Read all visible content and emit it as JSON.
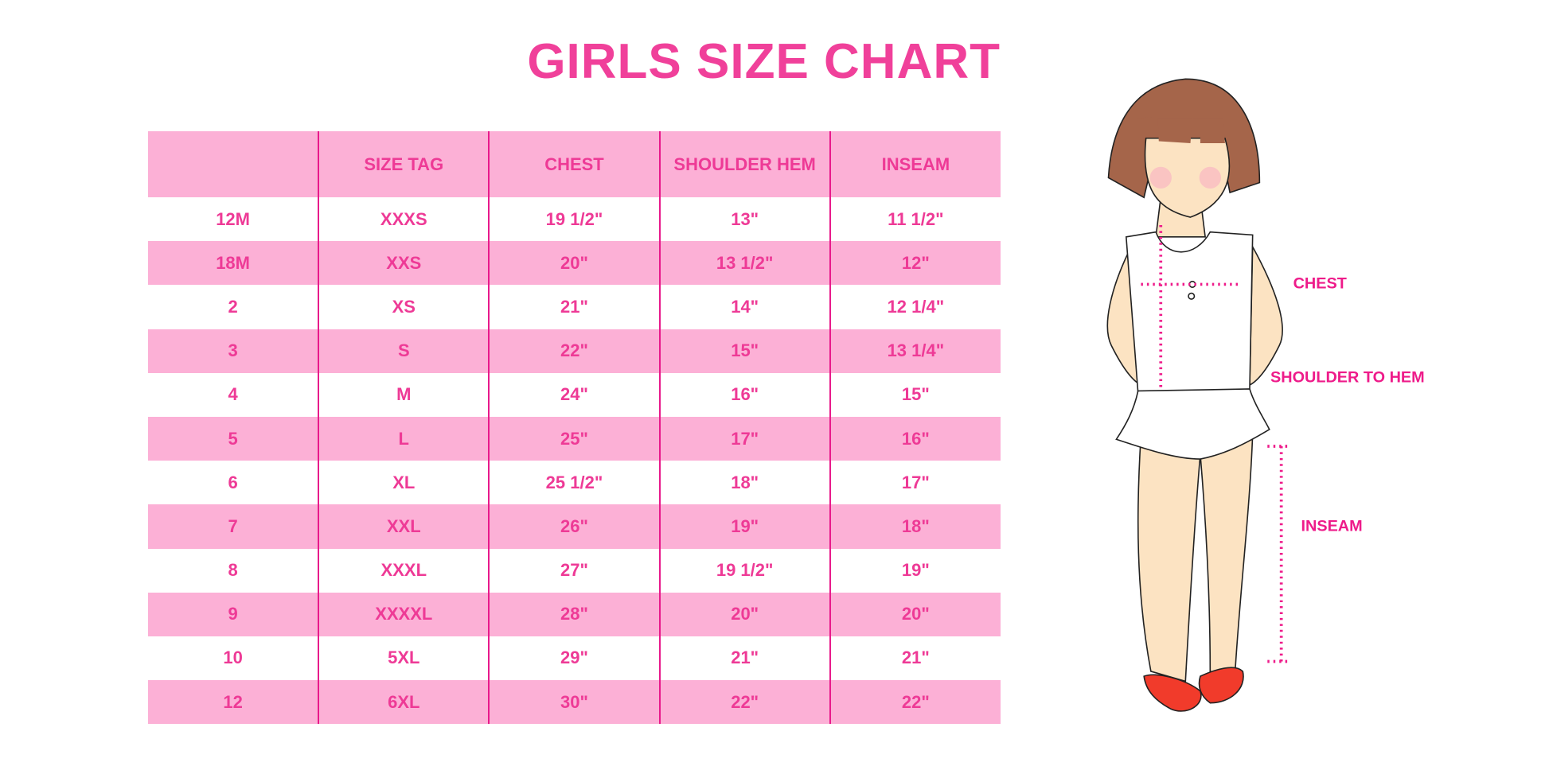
{
  "title": "GIRLS SIZE CHART",
  "table": {
    "headers": [
      "",
      "SIZE TAG",
      "CHEST",
      "SHOULDER HEM",
      "INSEAM"
    ],
    "rows": [
      [
        "12M",
        "XXXS",
        "19 1/2\"",
        "13\"",
        "11 1/2\""
      ],
      [
        "18M",
        "XXS",
        "20\"",
        "13 1/2\"",
        "12\""
      ],
      [
        "2",
        "XS",
        "21\"",
        "14\"",
        "12 1/4\""
      ],
      [
        "3",
        "S",
        "22\"",
        "15\"",
        "13 1/4\""
      ],
      [
        "4",
        "M",
        "24\"",
        "16\"",
        "15\""
      ],
      [
        "5",
        "L",
        "25\"",
        "17\"",
        "16\""
      ],
      [
        "6",
        "XL",
        "25 1/2\"",
        "18\"",
        "17\""
      ],
      [
        "7",
        "XXL",
        "26\"",
        "19\"",
        "18\""
      ],
      [
        "8",
        "XXXL",
        "27\"",
        "19 1/2\"",
        "19\""
      ],
      [
        "9",
        "XXXXL",
        "28\"",
        "20\"",
        "20\""
      ],
      [
        "10",
        "5XL",
        "29\"",
        "21\"",
        "21\""
      ],
      [
        "12",
        "6XL",
        "30\"",
        "22\"",
        "22\""
      ]
    ]
  },
  "figure": {
    "labels": {
      "chest": "CHEST",
      "shoulder_to_hem": "SHOULDER TO HEM",
      "inseam": "INSEAM"
    }
  },
  "colors": {
    "title": "#f0409a",
    "text": "#ee3a96",
    "band": "#fcb0d6",
    "rule": "#e8198b"
  }
}
